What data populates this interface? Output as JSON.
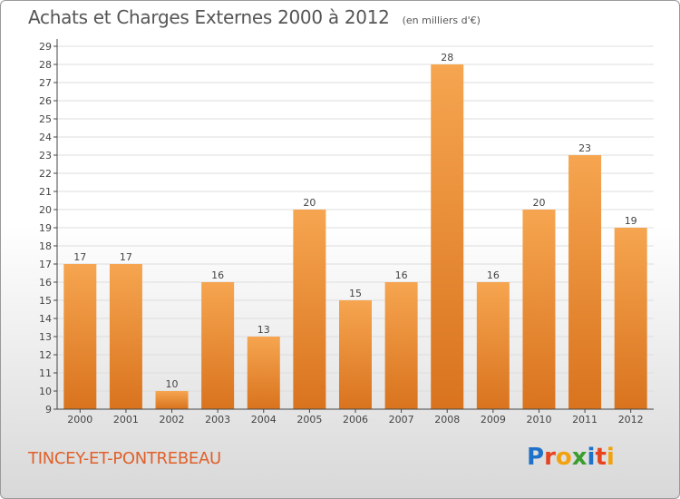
{
  "header": {
    "title": "Achats et Charges Externes 2000 à 2012",
    "subtitle": "(en milliers d'€)"
  },
  "footer": {
    "commune": "TINCEY-ET-PONTREBEAU",
    "logo_letters": [
      "P",
      "r",
      "o",
      "x",
      "i",
      "t",
      "i"
    ],
    "logo_colors": [
      "#1e73c8",
      "#e8431f",
      "#f2a20f",
      "#3a9e2e",
      "#1e73c8",
      "#e8431f",
      "#f2a20f"
    ]
  },
  "colors": {
    "bar_light": "#f6a550",
    "bar_dark": "#d9731e",
    "axis": "#444444",
    "grid": "#dddddd"
  },
  "chart_data": {
    "type": "bar",
    "title": "Achats et Charges Externes 2000 à 2012",
    "subtitle": "(en milliers d'€)",
    "categories": [
      "2000",
      "2001",
      "2002",
      "2003",
      "2004",
      "2005",
      "2006",
      "2007",
      "2008",
      "2009",
      "2010",
      "2011",
      "2012"
    ],
    "values": [
      17,
      17,
      10,
      16,
      13,
      20,
      15,
      16,
      28,
      16,
      20,
      23,
      19
    ],
    "ylim": [
      9,
      29
    ],
    "yticks": [
      9,
      10,
      11,
      12,
      13,
      14,
      15,
      16,
      17,
      18,
      19,
      20,
      21,
      22,
      23,
      24,
      25,
      26,
      27,
      28,
      29
    ],
    "xlabel": "",
    "ylabel": "",
    "grid": true,
    "data_labels": true
  }
}
